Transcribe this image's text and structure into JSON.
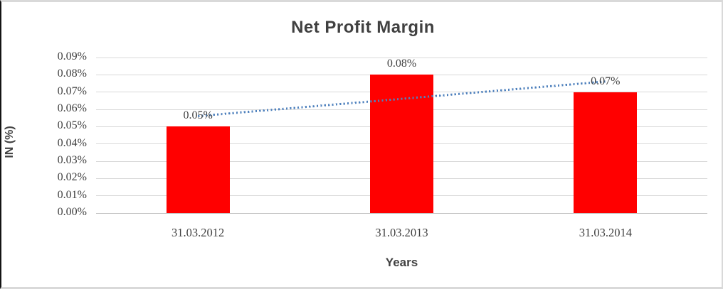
{
  "chart_data": {
    "type": "bar",
    "title": "Net Profit Margin",
    "xlabel": "Years",
    "ylabel": "IN (%)",
    "categories": [
      "31.03.2012",
      "31.03.2013",
      "31.03.2014"
    ],
    "values": [
      0.05,
      0.08,
      0.07
    ],
    "data_labels": [
      "0.05%",
      "0.08%",
      "0.07%"
    ],
    "ylim": [
      0,
      0.09
    ],
    "ytick_step": 0.01,
    "ytick_labels": [
      "0.00%",
      "0.01%",
      "0.02%",
      "0.03%",
      "0.04%",
      "0.05%",
      "0.06%",
      "0.07%",
      "0.08%",
      "0.09%"
    ],
    "grid": true,
    "legend": "none",
    "trendline": {
      "type": "linear",
      "style": "dotted"
    },
    "colors": {
      "bar": "#FF0000",
      "trend": "#4F81BD",
      "gridline": "#D9D9D9",
      "axis_line": "#BFBFBF",
      "text": "#404040"
    }
  }
}
